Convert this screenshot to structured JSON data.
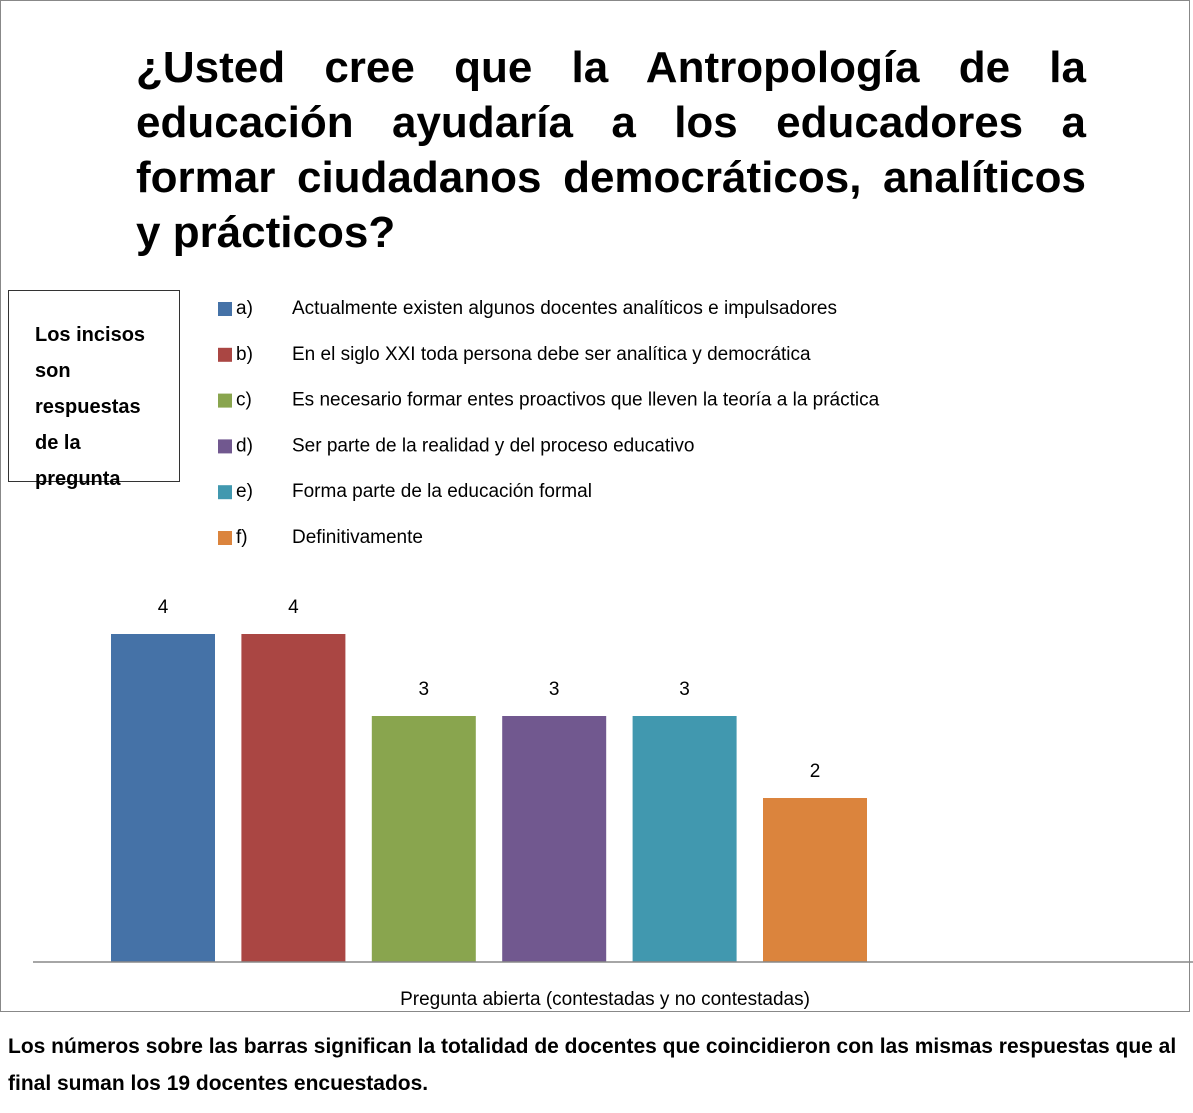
{
  "chart_data": {
    "type": "bar",
    "title": "¿Usted cree que la Antropología de la educación ayudaría a los educadores a formar ciudadanos democráticos, analíticos y prácticos?",
    "note_box": "Los incisos son respuestas de la pregunta",
    "categories": [
      "a)",
      "b)",
      "c)",
      "d)",
      "e)",
      "f)"
    ],
    "descriptions": [
      "Actualmente existen algunos docentes analíticos e impulsadores",
      "En el siglo XXI toda persona debe ser analítica y democrática",
      "Es necesario formar entes proactivos que lleven la teoría a la práctica",
      "Ser parte de la realidad y del proceso educativo",
      "Forma parte de la educación formal",
      "Definitivamente"
    ],
    "values": [
      4,
      4,
      3,
      3,
      3,
      2
    ],
    "colors": [
      "#4572a7",
      "#aa4643",
      "#89a54e",
      "#71588f",
      "#4198af",
      "#db843d"
    ],
    "xlabel": "Pregunta abierta (contestadas y no contestadas)",
    "ylim": [
      0,
      4
    ],
    "footer": "Los números sobre las barras significan la totalidad de docentes que coincidieron con las mismas respuestas que al final suman los 19 docentes encuestados."
  }
}
